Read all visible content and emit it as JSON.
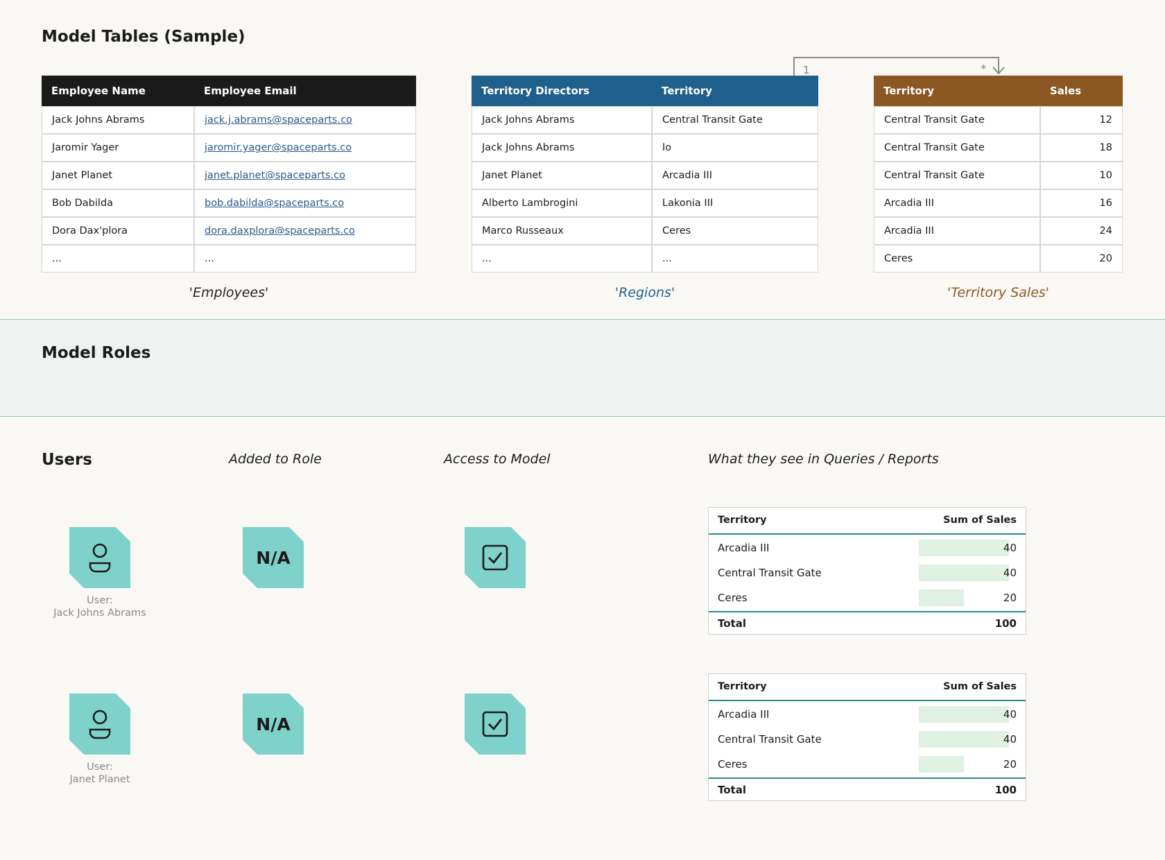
{
  "model_tables": {
    "title": "Model Tables (Sample)",
    "relationship": {
      "one": "1",
      "many": "*"
    },
    "tables": [
      {
        "caption": "'Employees'",
        "columns": [
          "Employee Name",
          "Employee Email"
        ],
        "rows": [
          [
            "Jack Johns Abrams",
            "jack.j.abrams@spaceparts.co"
          ],
          [
            "Jaromir Yager",
            "jaromir.yager@spaceparts.co"
          ],
          [
            "Janet Planet",
            "janet.planet@spaceparts.co"
          ],
          [
            "Bob Dabilda",
            "bob.dabilda@spaceparts.co"
          ],
          [
            "Dora Dax'plora",
            "dora.daxplora@spaceparts.co"
          ],
          [
            "...",
            "..."
          ]
        ]
      },
      {
        "caption": "'Regions'",
        "columns": [
          "Territory Directors",
          "Territory"
        ],
        "rows": [
          [
            "Jack Johns Abrams",
            "Central Transit Gate"
          ],
          [
            "Jack Johns Abrams",
            "Io"
          ],
          [
            "Janet Planet",
            "Arcadia III"
          ],
          [
            "Alberto Lambrogini",
            "Lakonia III"
          ],
          [
            "Marco Russeaux",
            "Ceres"
          ],
          [
            "...",
            "..."
          ]
        ]
      },
      {
        "caption": "'Territory Sales'",
        "columns": [
          "Territory",
          "Sales"
        ],
        "rows": [
          [
            "Central Transit Gate",
            12
          ],
          [
            "Central Transit Gate",
            18
          ],
          [
            "Central Transit Gate",
            10
          ],
          [
            "Arcadia III",
            16
          ],
          [
            "Arcadia III",
            24
          ],
          [
            "Ceres",
            20
          ]
        ]
      }
    ]
  },
  "model_roles": {
    "title": "Model Roles"
  },
  "users": {
    "headers": [
      "Users",
      "Added to Role",
      "Access to Model",
      "What they see in Queries / Reports"
    ],
    "rows": [
      {
        "user_label": "User:",
        "user_name": "Jack Johns Abrams",
        "added": "N/A",
        "report": {
          "columns": [
            "Territory",
            "Sum of Sales"
          ],
          "rows": [
            [
              "Arcadia III",
              40
            ],
            [
              "Central Transit Gate",
              40
            ],
            [
              "Ceres",
              20
            ]
          ],
          "total_label": "Total",
          "total": 100
        }
      },
      {
        "user_label": "User:",
        "user_name": "Janet Planet",
        "added": "N/A",
        "report": {
          "columns": [
            "Territory",
            "Sum of Sales"
          ],
          "rows": [
            [
              "Arcadia III",
              40
            ],
            [
              "Central Transit Gate",
              40
            ],
            [
              "Ceres",
              20
            ]
          ],
          "total_label": "Total",
          "total": 100
        }
      }
    ]
  }
}
